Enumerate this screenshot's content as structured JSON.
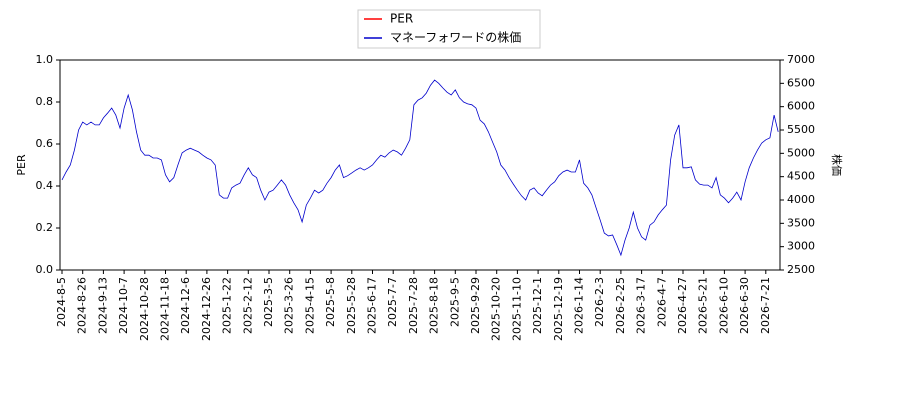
{
  "chart_data": {
    "type": "line",
    "y_label": "PER",
    "y2_label": "株価",
    "legend": "upper center",
    "categories": [
      "2024-8-5",
      null,
      null,
      null,
      null,
      "2024-8-26",
      null,
      null,
      null,
      null,
      "2024-9-13",
      null,
      null,
      null,
      null,
      "2024-10-7",
      null,
      null,
      null,
      null,
      "2024-10-28",
      null,
      null,
      null,
      null,
      "2024-11-18",
      null,
      null,
      null,
      null,
      "2024-12-6",
      null,
      null,
      null,
      null,
      "2024-12-26",
      null,
      null,
      null,
      null,
      "2025-1-22",
      null,
      null,
      null,
      null,
      "2025-2-12",
      null,
      null,
      null,
      null,
      "2025-3-5",
      null,
      null,
      null,
      null,
      "2025-3-26",
      null,
      null,
      null,
      null,
      "2025-4-15",
      null,
      null,
      null,
      null,
      "2025-5-8",
      null,
      null,
      null,
      null,
      "2025-5-28",
      null,
      null,
      null,
      null,
      "2025-6-17",
      null,
      null,
      null,
      null,
      "2025-7-7",
      null,
      null,
      null,
      null,
      "2025-7-28",
      null,
      null,
      null,
      null,
      "2025-8-18",
      null,
      null,
      null,
      null,
      "2025-9-5",
      null,
      null,
      null,
      null,
      "2025-9-29",
      null,
      null,
      null,
      null,
      "2025-10-20",
      null,
      null,
      null,
      null,
      "2025-11-10",
      null,
      null,
      null,
      null,
      "2025-12-1",
      null,
      null,
      null,
      null,
      "2025-12-19",
      null,
      null,
      null,
      null,
      "2026-1-14",
      null,
      null,
      null,
      null,
      "2026-2-3",
      null,
      null,
      null,
      null,
      "2026-2-25",
      null,
      null,
      null,
      null,
      "2026-3-17",
      null,
      null,
      null,
      null,
      "2026-4-7",
      null,
      null,
      null,
      null,
      "2026-4-27",
      null,
      null,
      null,
      null,
      "2026-5-21",
      null,
      null,
      null,
      null,
      "2026-6-10",
      null,
      null,
      null,
      null,
      "2026-6-30",
      null,
      null,
      null,
      null,
      "2026-7-21",
      null,
      null,
      null
    ],
    "series": [
      {
        "name": "PER",
        "color": "#ff0000",
        "axis": "y",
        "values": [
          null,
          null,
          null,
          null,
          null,
          null,
          null,
          null,
          null,
          null,
          null,
          null,
          null,
          null,
          null,
          null,
          null,
          null,
          null,
          null,
          null,
          null,
          null,
          null,
          null,
          null,
          null,
          null,
          null,
          null,
          null,
          null,
          null,
          null,
          null,
          null,
          null,
          null,
          null,
          null,
          null,
          null,
          null,
          null,
          null,
          null,
          null,
          null,
          null,
          null,
          null,
          null,
          null,
          null,
          null,
          null,
          null,
          null,
          null,
          null,
          null,
          null,
          null,
          null,
          null,
          null,
          null,
          null,
          null,
          null,
          null,
          null,
          null,
          null,
          null,
          null,
          null,
          null,
          null,
          null,
          null,
          null,
          null,
          null,
          null,
          null,
          null,
          null,
          null,
          null,
          null,
          null,
          null,
          null,
          null,
          null,
          null,
          null,
          null,
          null,
          null,
          null,
          null,
          null,
          null,
          null,
          null,
          null,
          null,
          null,
          null,
          null,
          null,
          null,
          null,
          null,
          null,
          null,
          null,
          null,
          null,
          null,
          null,
          null,
          null,
          null,
          null,
          null,
          null,
          null,
          null,
          null,
          null,
          null,
          null,
          null,
          null,
          null,
          null,
          null,
          null,
          null,
          null,
          null,
          null,
          null,
          null,
          null,
          null,
          null,
          null,
          null,
          null,
          null,
          null,
          null,
          null,
          null,
          null,
          null,
          null,
          null,
          null,
          null,
          null,
          null,
          null,
          null,
          null,
          null,
          null,
          null,
          null,
          null
        ]
      },
      {
        "name": "マネーフォワードの株価",
        "color": "#0000cc",
        "axis": "y2",
        "values": [
          4430,
          4600,
          4750,
          5070,
          5500,
          5670,
          5610,
          5670,
          5610,
          5610,
          5760,
          5860,
          5970,
          5820,
          5540,
          5970,
          6250,
          5930,
          5460,
          5070,
          4960,
          4960,
          4900,
          4900,
          4860,
          4540,
          4390,
          4480,
          4750,
          5010,
          5070,
          5110,
          5070,
          5030,
          4960,
          4900,
          4860,
          4750,
          4110,
          4040,
          4040,
          4260,
          4320,
          4360,
          4540,
          4690,
          4540,
          4480,
          4210,
          4000,
          4170,
          4210,
          4320,
          4430,
          4320,
          4110,
          3940,
          3790,
          3530,
          3890,
          4040,
          4210,
          4150,
          4210,
          4360,
          4480,
          4640,
          4750,
          4480,
          4520,
          4580,
          4640,
          4690,
          4640,
          4690,
          4750,
          4860,
          4960,
          4920,
          5010,
          5070,
          5030,
          4960,
          5110,
          5290,
          6040,
          6140,
          6190,
          6290,
          6460,
          6570,
          6500,
          6400,
          6310,
          6250,
          6360,
          6190,
          6100,
          6060,
          6040,
          5970,
          5710,
          5630,
          5460,
          5240,
          5030,
          4750,
          4640,
          4480,
          4340,
          4210,
          4090,
          4000,
          4210,
          4260,
          4150,
          4090,
          4210,
          4320,
          4390,
          4520,
          4600,
          4640,
          4600,
          4600,
          4860,
          4360,
          4260,
          4110,
          3830,
          3570,
          3290,
          3230,
          3250,
          3040,
          2820,
          3140,
          3400,
          3740,
          3400,
          3210,
          3140,
          3460,
          3530,
          3680,
          3790,
          3890,
          4860,
          5390,
          5610,
          4690,
          4690,
          4710,
          4430,
          4340,
          4320,
          4320,
          4260,
          4480,
          4110,
          4040,
          3940,
          4040,
          4170,
          4000,
          4390,
          4690,
          4900,
          5070,
          5220,
          5290,
          5330,
          5820,
          5460
        ]
      }
    ],
    "ylim": [
      0,
      1
    ],
    "yticks": [
      {
        "value": 0,
        "label": "0.0"
      },
      0.2,
      0.4,
      0.6,
      0.8,
      {
        "value": 1,
        "label": "1.0"
      }
    ],
    "y2lim": [
      2500,
      7000
    ],
    "y2ticks": [
      2500,
      3000,
      3500,
      4000,
      4500,
      5000,
      5500,
      6000,
      6500,
      7000
    ]
  }
}
